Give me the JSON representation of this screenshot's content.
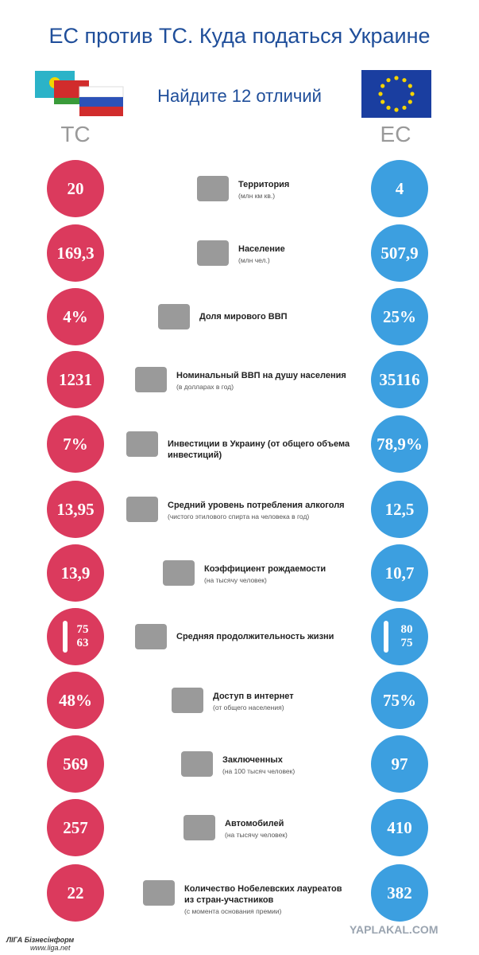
{
  "header": {
    "title": "ЕС против ТС. Куда податься Украине",
    "subtitle": "Найдите 12 отличий",
    "left_label": "ТС",
    "right_label": "ЕС"
  },
  "rows": [
    {
      "ts": "20",
      "label": "Территория",
      "note": "(млн км кв.)",
      "es": "4"
    },
    {
      "ts": "169,3",
      "label": "Население",
      "note": "(млн чел.)",
      "es": "507,9"
    },
    {
      "ts": "4%",
      "label": "Доля мирового ВВП",
      "es": "25%"
    },
    {
      "ts": "1231",
      "label": "Номинальный ВВП на душу населения",
      "note": "(в долларах в год)",
      "es": "35116"
    },
    {
      "ts": "7%",
      "label": "Инвестиции в Украину (от общего объема инвестиций)",
      "es": "78,9%"
    },
    {
      "ts": "13,95",
      "label": "Средний уровень потребления алкоголя",
      "note": "(чистого этилового спирта на человека в год)",
      "es": "12,5"
    },
    {
      "ts": "13,9",
      "label": "Коэффициент рождаемости",
      "note": "(на  тысячу человек)",
      "es": "10,7"
    },
    {
      "ts": [
        "75",
        "63"
      ],
      "label": "Средняя продолжительность жизни",
      "es": [
        "80",
        "75"
      ]
    },
    {
      "ts": "48%",
      "label": "Доступ в интернет",
      "note": "(от общего населения)",
      "es": "75%"
    },
    {
      "ts": "569",
      "label": "Заключенных",
      "note": "(на 100 тысяч человек)",
      "es": "97"
    },
    {
      "ts": "257",
      "label": "Автомобилей",
      "note": "(на тысячу человек)",
      "es": "410"
    },
    {
      "ts": "22",
      "label": "Количество Нобелевских лауреатов из стран-участников",
      "note": "(с момента основания премии)",
      "es": "382"
    }
  ],
  "footer": {
    "source": "ЛIГА Бізнесінформ",
    "url": "www.liga.net",
    "watermark": "YAPLAKAL.COM"
  }
}
